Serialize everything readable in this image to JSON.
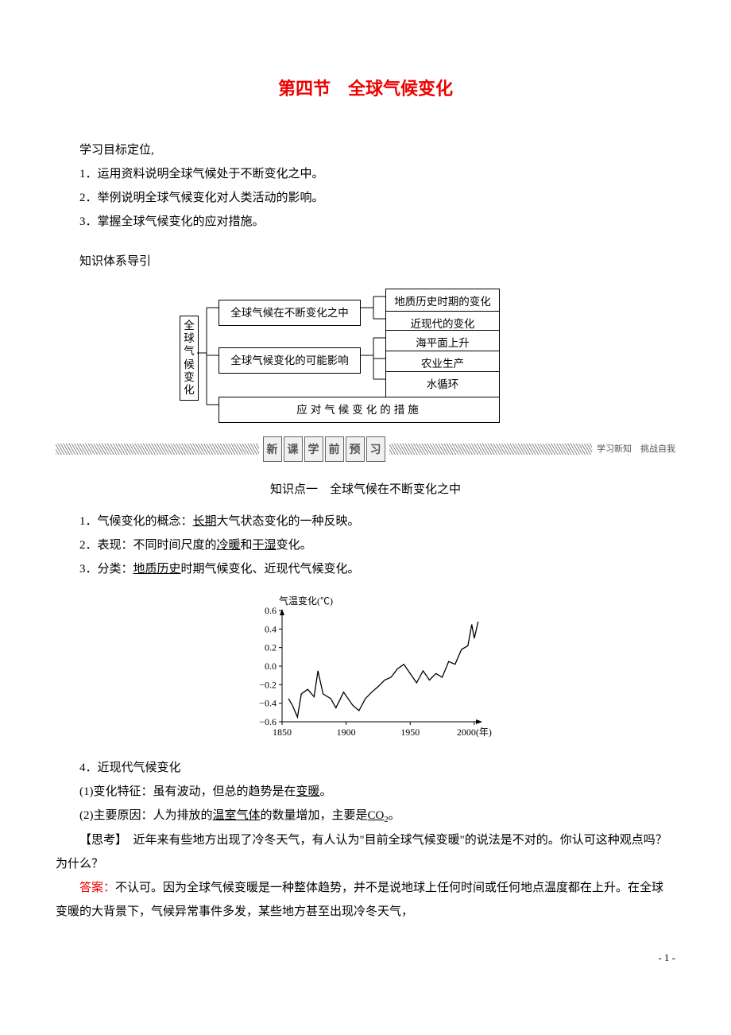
{
  "title": "第四节　全球气候变化",
  "objectives_header": "学习目标定位,",
  "objectives": [
    "1．运用资料说明全球气候处于不断变化之中。",
    "2．举例说明全球气候变化对人类活动的影响。",
    "3．掌握全球气候变化的应对措施。"
  ],
  "system_header": "知识体系导引",
  "tree": {
    "root": "全球气候变化",
    "branches": [
      {
        "label": "全球气候在不断变化之中",
        "children": [
          "地质历史时期的变化",
          "近现代的变化"
        ]
      },
      {
        "label": "全球气候变化的可能影响",
        "children": [
          "海平面上升",
          "农业生产",
          "水循环"
        ]
      },
      {
        "label": "应对气候变化的措施",
        "children": []
      }
    ]
  },
  "banner": {
    "chars": [
      "新",
      "课",
      "学",
      "前",
      "预",
      "习"
    ],
    "tail": "学习新知　挑战自我"
  },
  "kp1_title": "知识点一　全球气候在不断变化之中",
  "p1_a": "1．气候变化的概念：",
  "p1_u": "长期",
  "p1_b": "大气状态变化的一种反映。",
  "p2_a": "2．表现：不同时间尺度的",
  "p2_u1": "冷暖",
  "p2_b": "和",
  "p2_u2": "干湿",
  "p2_c": "变化。",
  "p3_a": "3．分类：",
  "p3_u": "地质历史",
  "p3_b": "时期气候变化、近现代气候变化。",
  "chart": {
    "y_title": "气温变化(℃)",
    "y_ticks": [
      -0.6,
      -0.4,
      -0.2,
      0.0,
      0.2,
      0.4,
      0.6
    ],
    "x_ticks": [
      1850,
      1900,
      1950,
      2000
    ],
    "x_suffix": "(年)",
    "xlim": [
      1850,
      2005
    ],
    "ylim": [
      -0.6,
      0.6
    ],
    "line_color": "#000000",
    "axis_color": "#000000",
    "series": [
      [
        1855,
        -0.35
      ],
      [
        1858,
        -0.42
      ],
      [
        1862,
        -0.55
      ],
      [
        1865,
        -0.3
      ],
      [
        1870,
        -0.25
      ],
      [
        1875,
        -0.33
      ],
      [
        1878,
        -0.05
      ],
      [
        1882,
        -0.3
      ],
      [
        1888,
        -0.35
      ],
      [
        1892,
        -0.45
      ],
      [
        1898,
        -0.28
      ],
      [
        1905,
        -0.42
      ],
      [
        1910,
        -0.48
      ],
      [
        1915,
        -0.35
      ],
      [
        1920,
        -0.28
      ],
      [
        1925,
        -0.22
      ],
      [
        1930,
        -0.15
      ],
      [
        1935,
        -0.12
      ],
      [
        1940,
        -0.03
      ],
      [
        1945,
        0.02
      ],
      [
        1950,
        -0.08
      ],
      [
        1955,
        -0.18
      ],
      [
        1960,
        -0.05
      ],
      [
        1965,
        -0.15
      ],
      [
        1970,
        -0.08
      ],
      [
        1975,
        -0.12
      ],
      [
        1980,
        0.05
      ],
      [
        1985,
        0.02
      ],
      [
        1990,
        0.18
      ],
      [
        1995,
        0.22
      ],
      [
        1998,
        0.45
      ],
      [
        2000,
        0.3
      ],
      [
        2003,
        0.48
      ]
    ]
  },
  "p4": "4．近现代气候变化",
  "p4_1a": "(1)变化特征：虽有波动，但总的趋势是在",
  "p4_1u": "变暖",
  "p4_1b": "。",
  "p4_2a": "(2)主要原因：人为排放的",
  "p4_2u1": "温室气体",
  "p4_2b": "的数量增加，主要是",
  "p4_2u2_pre": "CO",
  "p4_2u2_sub": "2",
  "p4_2c": "。",
  "think_label": "【思考】",
  "think_body": "　近年来有些地方出现了冷冬天气，有人认为\"目前全球气候变暖\"的说法是不对的。你认可这种观点吗？为什么？",
  "ans_label": "答案：",
  "ans_body": "不认可。因为全球气候变暖是一种整体趋势，并不是说地球上任何时间或任何地点温度都在上升。在全球变暖的大背景下，气候异常事件多发，某些地方甚至出现冷冬天气，",
  "pagenum": "- 1 -"
}
